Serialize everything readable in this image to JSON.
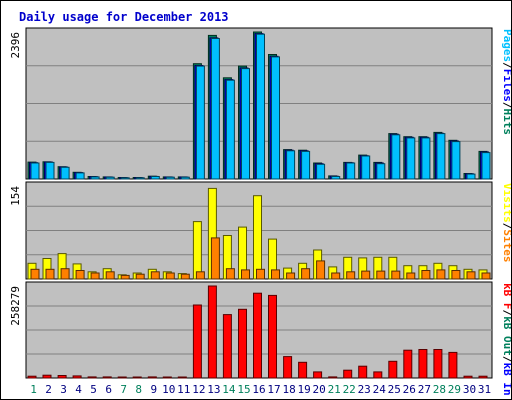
{
  "title": "Daily usage for December 2013",
  "chart_data": [
    {
      "type": "bar",
      "ymax_label": "2396",
      "ylim": [
        0,
        2396
      ],
      "legend": [
        {
          "text": "Pages",
          "color": "#00c0ff"
        },
        {
          "text": "/",
          "color": "#000000"
        },
        {
          "text": "Files",
          "color": "#0000ff"
        },
        {
          "text": "/",
          "color": "#000000"
        },
        {
          "text": "Hits",
          "color": "#00805c"
        }
      ],
      "series": [
        {
          "name": "Hits",
          "color": "#00805c",
          "values": [
            275,
            280,
            200,
            110,
            40,
            35,
            25,
            25,
            45,
            35,
            35,
            1880,
            2340,
            1650,
            1840,
            2396,
            2030,
            480,
            470,
            260,
            50,
            270,
            390,
            270,
            740,
            690,
            690,
            760,
            630,
            90,
            450
          ]
        },
        {
          "name": "Files",
          "color": "#0000ff",
          "values": [
            265,
            275,
            195,
            105,
            38,
            33,
            22,
            22,
            42,
            33,
            33,
            1850,
            2300,
            1620,
            1810,
            2370,
            2000,
            470,
            460,
            250,
            45,
            265,
            380,
            260,
            730,
            680,
            680,
            745,
            620,
            85,
            440
          ]
        },
        {
          "name": "Pages",
          "color": "#00c0ff",
          "values": [
            260,
            270,
            190,
            100,
            35,
            30,
            20,
            20,
            40,
            30,
            30,
            1840,
            2290,
            1610,
            1800,
            2360,
            1990,
            460,
            450,
            240,
            40,
            260,
            375,
            250,
            720,
            670,
            670,
            740,
            610,
            80,
            430
          ]
        }
      ]
    },
    {
      "type": "bar",
      "ymax_label": "154",
      "ylim": [
        0,
        154
      ],
      "legend": [
        {
          "text": "Visits",
          "color": "#ffff00"
        },
        {
          "text": "/",
          "color": "#000000"
        },
        {
          "text": "Sites",
          "color": "#ff8000"
        }
      ],
      "series": [
        {
          "name": "Visits",
          "color": "#ffff00",
          "values": [
            26,
            34,
            42,
            25,
            12,
            17,
            7,
            10,
            16,
            12,
            9,
            95,
            150,
            72,
            86,
            138,
            66,
            18,
            26,
            48,
            20,
            36,
            35,
            36,
            36,
            22,
            22,
            26,
            22,
            16,
            15
          ]
        },
        {
          "name": "Sites",
          "color": "#ff8000",
          "values": [
            16,
            16,
            17,
            14,
            10,
            12,
            6,
            8,
            12,
            10,
            8,
            12,
            68,
            17,
            15,
            16,
            15,
            10,
            17,
            30,
            10,
            12,
            13,
            13,
            13,
            10,
            14,
            15,
            14,
            12,
            10
          ]
        }
      ]
    },
    {
      "type": "bar",
      "ymax_label": "258279",
      "ylim": [
        0,
        258279
      ],
      "legend": [
        {
          "text": "kB F",
          "color": "#ff0000"
        },
        {
          "text": "/",
          "color": "#000000"
        },
        {
          "text": "kB Out",
          "color": "#00805c"
        },
        {
          "text": "/",
          "color": "#000000"
        },
        {
          "text": "kB In",
          "color": "#0000ff"
        }
      ],
      "series": [
        {
          "name": "kB F",
          "color": "#ff0000",
          "values": [
            5000,
            8000,
            7000,
            6000,
            3000,
            3000,
            2000,
            2000,
            3000,
            2000,
            2000,
            205000,
            258279,
            178000,
            193000,
            238000,
            232000,
            60000,
            44000,
            17000,
            3000,
            22000,
            33000,
            17000,
            47000,
            78000,
            80000,
            80000,
            72000,
            5000,
            5000
          ]
        }
      ]
    }
  ],
  "days": [
    "1",
    "2",
    "3",
    "4",
    "5",
    "6",
    "7",
    "8",
    "9",
    "10",
    "11",
    "12",
    "13",
    "14",
    "15",
    "16",
    "17",
    "18",
    "19",
    "20",
    "21",
    "22",
    "23",
    "24",
    "25",
    "26",
    "27",
    "28",
    "29",
    "30",
    "31"
  ],
  "weekend_days": [
    1,
    7,
    8,
    14,
    15,
    21,
    22,
    28,
    29
  ],
  "colors": {
    "weekday": "#000080",
    "weekend": "#00805c",
    "panel_bg": "#c0c0c0",
    "grid": "#808080"
  }
}
